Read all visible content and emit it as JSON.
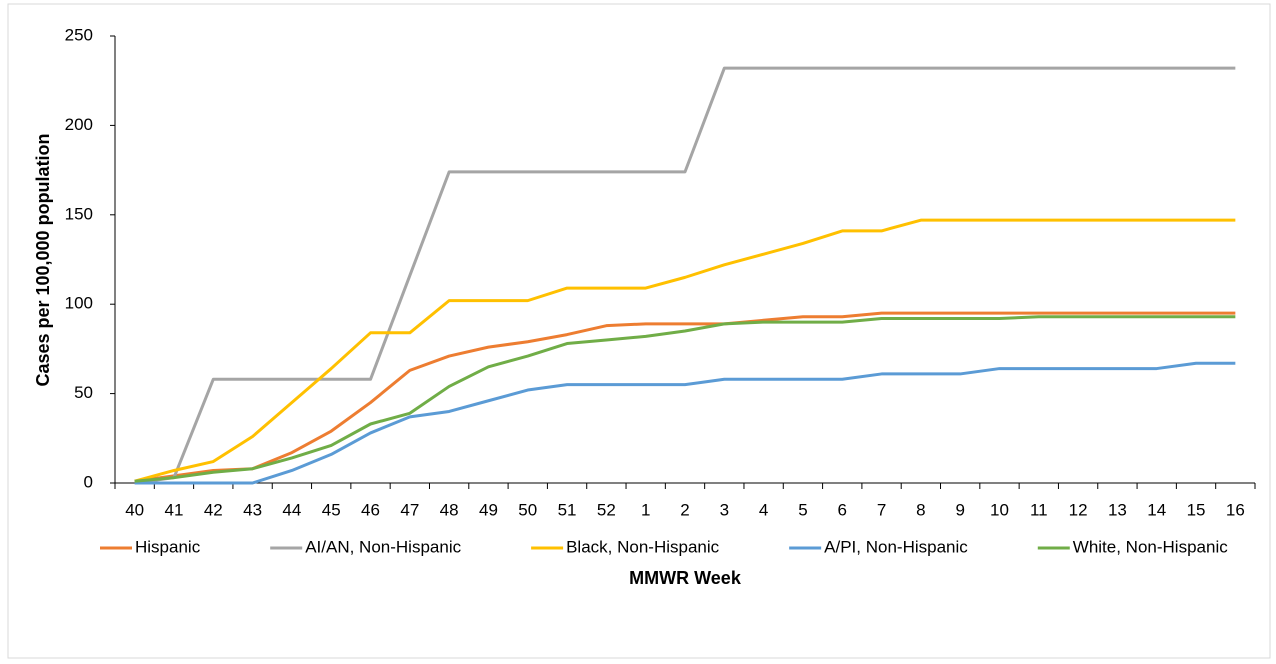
{
  "chart_data": {
    "type": "line",
    "x_label": "MMWR Week",
    "y_label": "Cases per 100,000 population",
    "categories": [
      "40",
      "41",
      "42",
      "43",
      "44",
      "45",
      "46",
      "47",
      "48",
      "49",
      "50",
      "51",
      "52",
      "1",
      "2",
      "3",
      "4",
      "5",
      "6",
      "7",
      "8",
      "9",
      "10",
      "11",
      "12",
      "13",
      "14",
      "15",
      "16"
    ],
    "series": [
      {
        "name": "Hispanic",
        "color": "#ed7d31",
        "values": [
          1,
          4,
          7,
          8,
          17,
          29,
          45,
          63,
          71,
          76,
          79,
          83,
          88,
          89,
          89,
          89,
          91,
          93,
          93,
          95,
          95,
          95,
          95,
          95,
          95,
          95,
          95,
          95,
          95
        ]
      },
      {
        "name": "AI/AN, Non-Hispanic",
        "color": "#a5a5a5",
        "values": [
          0,
          3,
          58,
          58,
          58,
          58,
          58,
          116,
          174,
          174,
          174,
          174,
          174,
          174,
          174,
          232,
          232,
          232,
          232,
          232,
          232,
          232,
          232,
          232,
          232,
          232,
          232,
          232,
          232
        ]
      },
      {
        "name": "Black, Non-Hispanic",
        "color": "#ffc000",
        "values": [
          1,
          7,
          12,
          26,
          45,
          64,
          84,
          84,
          102,
          102,
          102,
          109,
          109,
          109,
          115,
          122,
          128,
          134,
          141,
          141,
          147,
          147,
          147,
          147,
          147,
          147,
          147,
          147,
          147
        ]
      },
      {
        "name": "A/PI, Non-Hispanic",
        "color": "#5b9bd5",
        "values": [
          0,
          0,
          0,
          0,
          7,
          16,
          28,
          37,
          40,
          46,
          52,
          55,
          55,
          55,
          55,
          58,
          58,
          58,
          58,
          61,
          61,
          61,
          64,
          64,
          64,
          64,
          64,
          67,
          67
        ]
      },
      {
        "name": "White, Non-Hispanic",
        "color": "#70ad47",
        "values": [
          1,
          3,
          6,
          8,
          14,
          21,
          33,
          39,
          54,
          65,
          71,
          78,
          80,
          82,
          85,
          89,
          90,
          90,
          90,
          92,
          92,
          92,
          92,
          93,
          93,
          93,
          93,
          93,
          93
        ]
      }
    ],
    "ylim": [
      0,
      250
    ],
    "yticks": [
      0,
      50,
      100,
      150,
      200,
      250
    ],
    "legend": "bottom"
  }
}
